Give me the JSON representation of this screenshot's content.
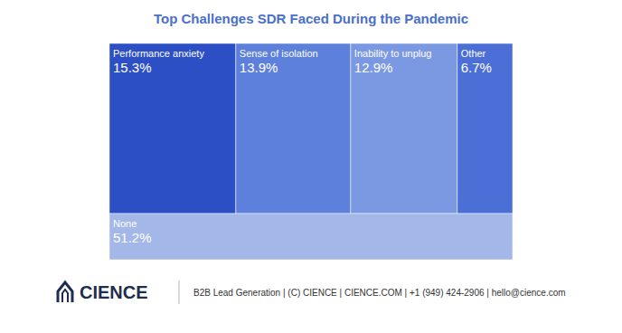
{
  "chart_data": {
    "type": "treemap",
    "title": "Top Challenges SDR Faced During the Pandemic",
    "categories": [
      "Performance anxiety",
      "Sense of isolation",
      "Inability to unplug",
      "Other",
      "None"
    ],
    "values": [
      15.3,
      13.9,
      12.9,
      6.7,
      51.2
    ],
    "value_labels": [
      "15.3%",
      "13.9%",
      "12.9%",
      "6.7%",
      "51.2%"
    ],
    "colors": [
      "#2c4fc6",
      "#5d80dc",
      "#7b98e2",
      "#4b6fd6",
      "#a3b7e8"
    ],
    "data_labels": true
  },
  "footer": {
    "logo": "CIENCE",
    "text": "B2B Lead Generation | (C) CIENCE | CIENCE.COM | +1 (949) 424-2906 | hello@cience.com"
  }
}
